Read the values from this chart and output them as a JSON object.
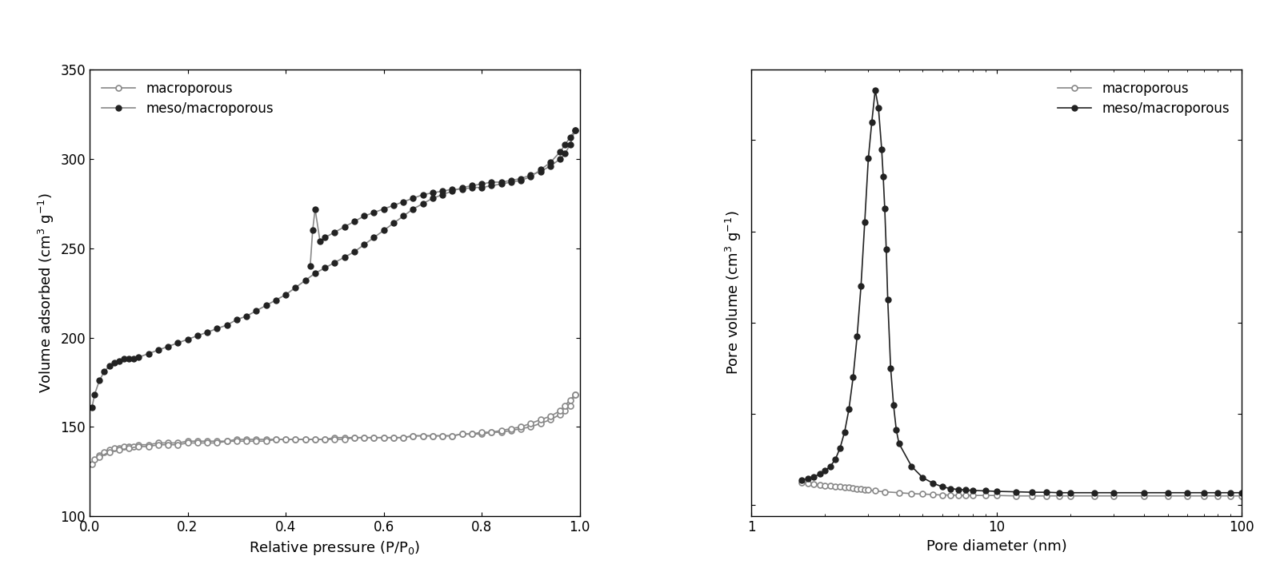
{
  "left_plot": {
    "xlabel": "Relative pressure (P/P$_0$)",
    "ylabel": "Volume adsorbed (cm$^3$ g$^{-1}$)",
    "xlim": [
      0.0,
      1.0
    ],
    "ylim": [
      100,
      350
    ],
    "yticks": [
      100,
      150,
      200,
      250,
      300,
      350
    ],
    "xticks": [
      0.0,
      0.2,
      0.4,
      0.6,
      0.8,
      1.0
    ],
    "macro_adsorb_x": [
      0.005,
      0.01,
      0.02,
      0.03,
      0.04,
      0.05,
      0.06,
      0.07,
      0.08,
      0.09,
      0.1,
      0.12,
      0.14,
      0.16,
      0.18,
      0.2,
      0.22,
      0.24,
      0.26,
      0.28,
      0.3,
      0.32,
      0.34,
      0.36,
      0.38,
      0.4,
      0.42,
      0.44,
      0.46,
      0.48,
      0.5,
      0.52,
      0.54,
      0.56,
      0.58,
      0.6,
      0.62,
      0.64,
      0.66,
      0.68,
      0.7,
      0.72,
      0.74,
      0.76,
      0.78,
      0.8,
      0.82,
      0.84,
      0.86,
      0.88,
      0.9,
      0.92,
      0.94,
      0.96,
      0.97,
      0.98,
      0.99
    ],
    "macro_adsorb_y": [
      129,
      132,
      134,
      136,
      137,
      138,
      138,
      139,
      139,
      139,
      140,
      140,
      141,
      141,
      141,
      142,
      142,
      142,
      142,
      142,
      143,
      143,
      143,
      143,
      143,
      143,
      143,
      143,
      143,
      143,
      144,
      144,
      144,
      144,
      144,
      144,
      144,
      144,
      145,
      145,
      145,
      145,
      145,
      146,
      146,
      146,
      147,
      147,
      148,
      149,
      150,
      152,
      154,
      157,
      159,
      162,
      168
    ],
    "macro_desorp_x": [
      0.99,
      0.98,
      0.97,
      0.96,
      0.94,
      0.92,
      0.9,
      0.88,
      0.86,
      0.84,
      0.82,
      0.8,
      0.78,
      0.76,
      0.74,
      0.72,
      0.7,
      0.68,
      0.66,
      0.64,
      0.62,
      0.6,
      0.58,
      0.56,
      0.54,
      0.52,
      0.5,
      0.48,
      0.46,
      0.44,
      0.42,
      0.4,
      0.38,
      0.36,
      0.34,
      0.32,
      0.3,
      0.28,
      0.26,
      0.24,
      0.22,
      0.2,
      0.18,
      0.16,
      0.14,
      0.12,
      0.1,
      0.08,
      0.06,
      0.04,
      0.02
    ],
    "macro_desorp_y": [
      168,
      165,
      162,
      159,
      156,
      154,
      152,
      150,
      149,
      148,
      147,
      147,
      146,
      146,
      145,
      145,
      145,
      145,
      145,
      144,
      144,
      144,
      144,
      144,
      144,
      143,
      143,
      143,
      143,
      143,
      143,
      143,
      143,
      142,
      142,
      142,
      142,
      142,
      141,
      141,
      141,
      141,
      140,
      140,
      140,
      139,
      139,
      138,
      137,
      136,
      133
    ],
    "meso_adsorb_x": [
      0.005,
      0.01,
      0.02,
      0.03,
      0.04,
      0.05,
      0.06,
      0.07,
      0.08,
      0.09,
      0.1,
      0.12,
      0.14,
      0.16,
      0.18,
      0.2,
      0.22,
      0.24,
      0.26,
      0.28,
      0.3,
      0.32,
      0.34,
      0.36,
      0.38,
      0.4,
      0.42,
      0.44,
      0.46,
      0.48,
      0.5,
      0.52,
      0.54,
      0.56,
      0.58,
      0.6,
      0.62,
      0.64,
      0.66,
      0.68,
      0.7,
      0.72,
      0.74,
      0.76,
      0.78,
      0.8,
      0.82,
      0.84,
      0.86,
      0.88,
      0.9,
      0.92,
      0.94,
      0.96,
      0.97,
      0.98,
      0.99
    ],
    "meso_adsorb_y": [
      161,
      168,
      176,
      181,
      184,
      186,
      187,
      188,
      188,
      188,
      189,
      191,
      193,
      195,
      197,
      199,
      201,
      203,
      205,
      207,
      210,
      212,
      215,
      218,
      221,
      224,
      228,
      232,
      236,
      239,
      242,
      245,
      248,
      252,
      256,
      260,
      264,
      268,
      272,
      275,
      278,
      280,
      282,
      284,
      285,
      286,
      287,
      287,
      288,
      289,
      291,
      293,
      296,
      300,
      303,
      308,
      316
    ],
    "meso_desorp_x": [
      0.99,
      0.98,
      0.97,
      0.96,
      0.94,
      0.92,
      0.9,
      0.88,
      0.86,
      0.84,
      0.82,
      0.8,
      0.78,
      0.76,
      0.74,
      0.72,
      0.7,
      0.68,
      0.66,
      0.64,
      0.62,
      0.6,
      0.58,
      0.56,
      0.54,
      0.52,
      0.5,
      0.48,
      0.47,
      0.46,
      0.455,
      0.45
    ],
    "meso_desorp_y": [
      316,
      312,
      308,
      304,
      298,
      294,
      290,
      288,
      287,
      286,
      285,
      284,
      284,
      283,
      283,
      282,
      281,
      280,
      278,
      276,
      274,
      272,
      270,
      268,
      265,
      262,
      259,
      256,
      254,
      272,
      260,
      240
    ]
  },
  "right_plot": {
    "xlabel": "Pore diameter (nm)",
    "ylabel": "Pore volume (cm$^3$ g$^{-1}$)",
    "xlim": [
      1.5,
      100
    ],
    "macro_x": [
      1.6,
      1.7,
      1.8,
      1.9,
      2.0,
      2.1,
      2.2,
      2.3,
      2.4,
      2.5,
      2.6,
      2.7,
      2.8,
      2.9,
      3.0,
      3.2,
      3.5,
      4.0,
      4.5,
      5.0,
      5.5,
      6.0,
      6.5,
      7.0,
      7.5,
      8.0,
      9.0,
      10.0,
      12.0,
      14.0,
      16.0,
      18.0,
      20.0,
      25.0,
      30.0,
      40.0,
      50.0,
      60.0,
      70.0,
      80.0,
      90.0,
      100.0
    ],
    "macro_y": [
      0.05,
      0.048,
      0.046,
      0.044,
      0.043,
      0.042,
      0.041,
      0.04,
      0.039,
      0.038,
      0.037,
      0.036,
      0.035,
      0.034,
      0.033,
      0.031,
      0.029,
      0.027,
      0.025,
      0.024,
      0.023,
      0.022,
      0.022,
      0.021,
      0.021,
      0.021,
      0.021,
      0.021,
      0.02,
      0.02,
      0.02,
      0.02,
      0.02,
      0.02,
      0.02,
      0.02,
      0.02,
      0.02,
      0.02,
      0.02,
      0.02,
      0.02
    ],
    "meso_x": [
      1.6,
      1.7,
      1.8,
      1.9,
      2.0,
      2.1,
      2.2,
      2.3,
      2.4,
      2.5,
      2.6,
      2.7,
      2.8,
      2.9,
      3.0,
      3.1,
      3.2,
      3.3,
      3.4,
      3.45,
      3.5,
      3.55,
      3.6,
      3.7,
      3.8,
      3.9,
      4.0,
      4.5,
      5.0,
      5.5,
      6.0,
      6.5,
      7.0,
      7.5,
      8.0,
      9.0,
      10.0,
      12.0,
      14.0,
      16.0,
      18.0,
      20.0,
      25.0,
      30.0,
      40.0,
      50.0,
      60.0,
      70.0,
      80.0,
      90.0,
      100.0
    ],
    "meso_y": [
      0.055,
      0.058,
      0.062,
      0.068,
      0.075,
      0.085,
      0.1,
      0.125,
      0.16,
      0.21,
      0.28,
      0.37,
      0.48,
      0.62,
      0.76,
      0.84,
      0.91,
      0.87,
      0.78,
      0.72,
      0.65,
      0.56,
      0.45,
      0.3,
      0.22,
      0.165,
      0.135,
      0.085,
      0.06,
      0.048,
      0.04,
      0.036,
      0.034,
      0.033,
      0.032,
      0.031,
      0.03,
      0.029,
      0.028,
      0.028,
      0.027,
      0.027,
      0.027,
      0.027,
      0.027,
      0.027,
      0.027,
      0.027,
      0.027,
      0.027,
      0.027
    ]
  },
  "line_color_gray": "#888888",
  "line_color_dark": "#222222",
  "bg_color": "#ffffff",
  "legend_macro": "macroporous",
  "legend_meso": "meso/macroporous",
  "fontsize": 12,
  "label_fontsize": 13
}
